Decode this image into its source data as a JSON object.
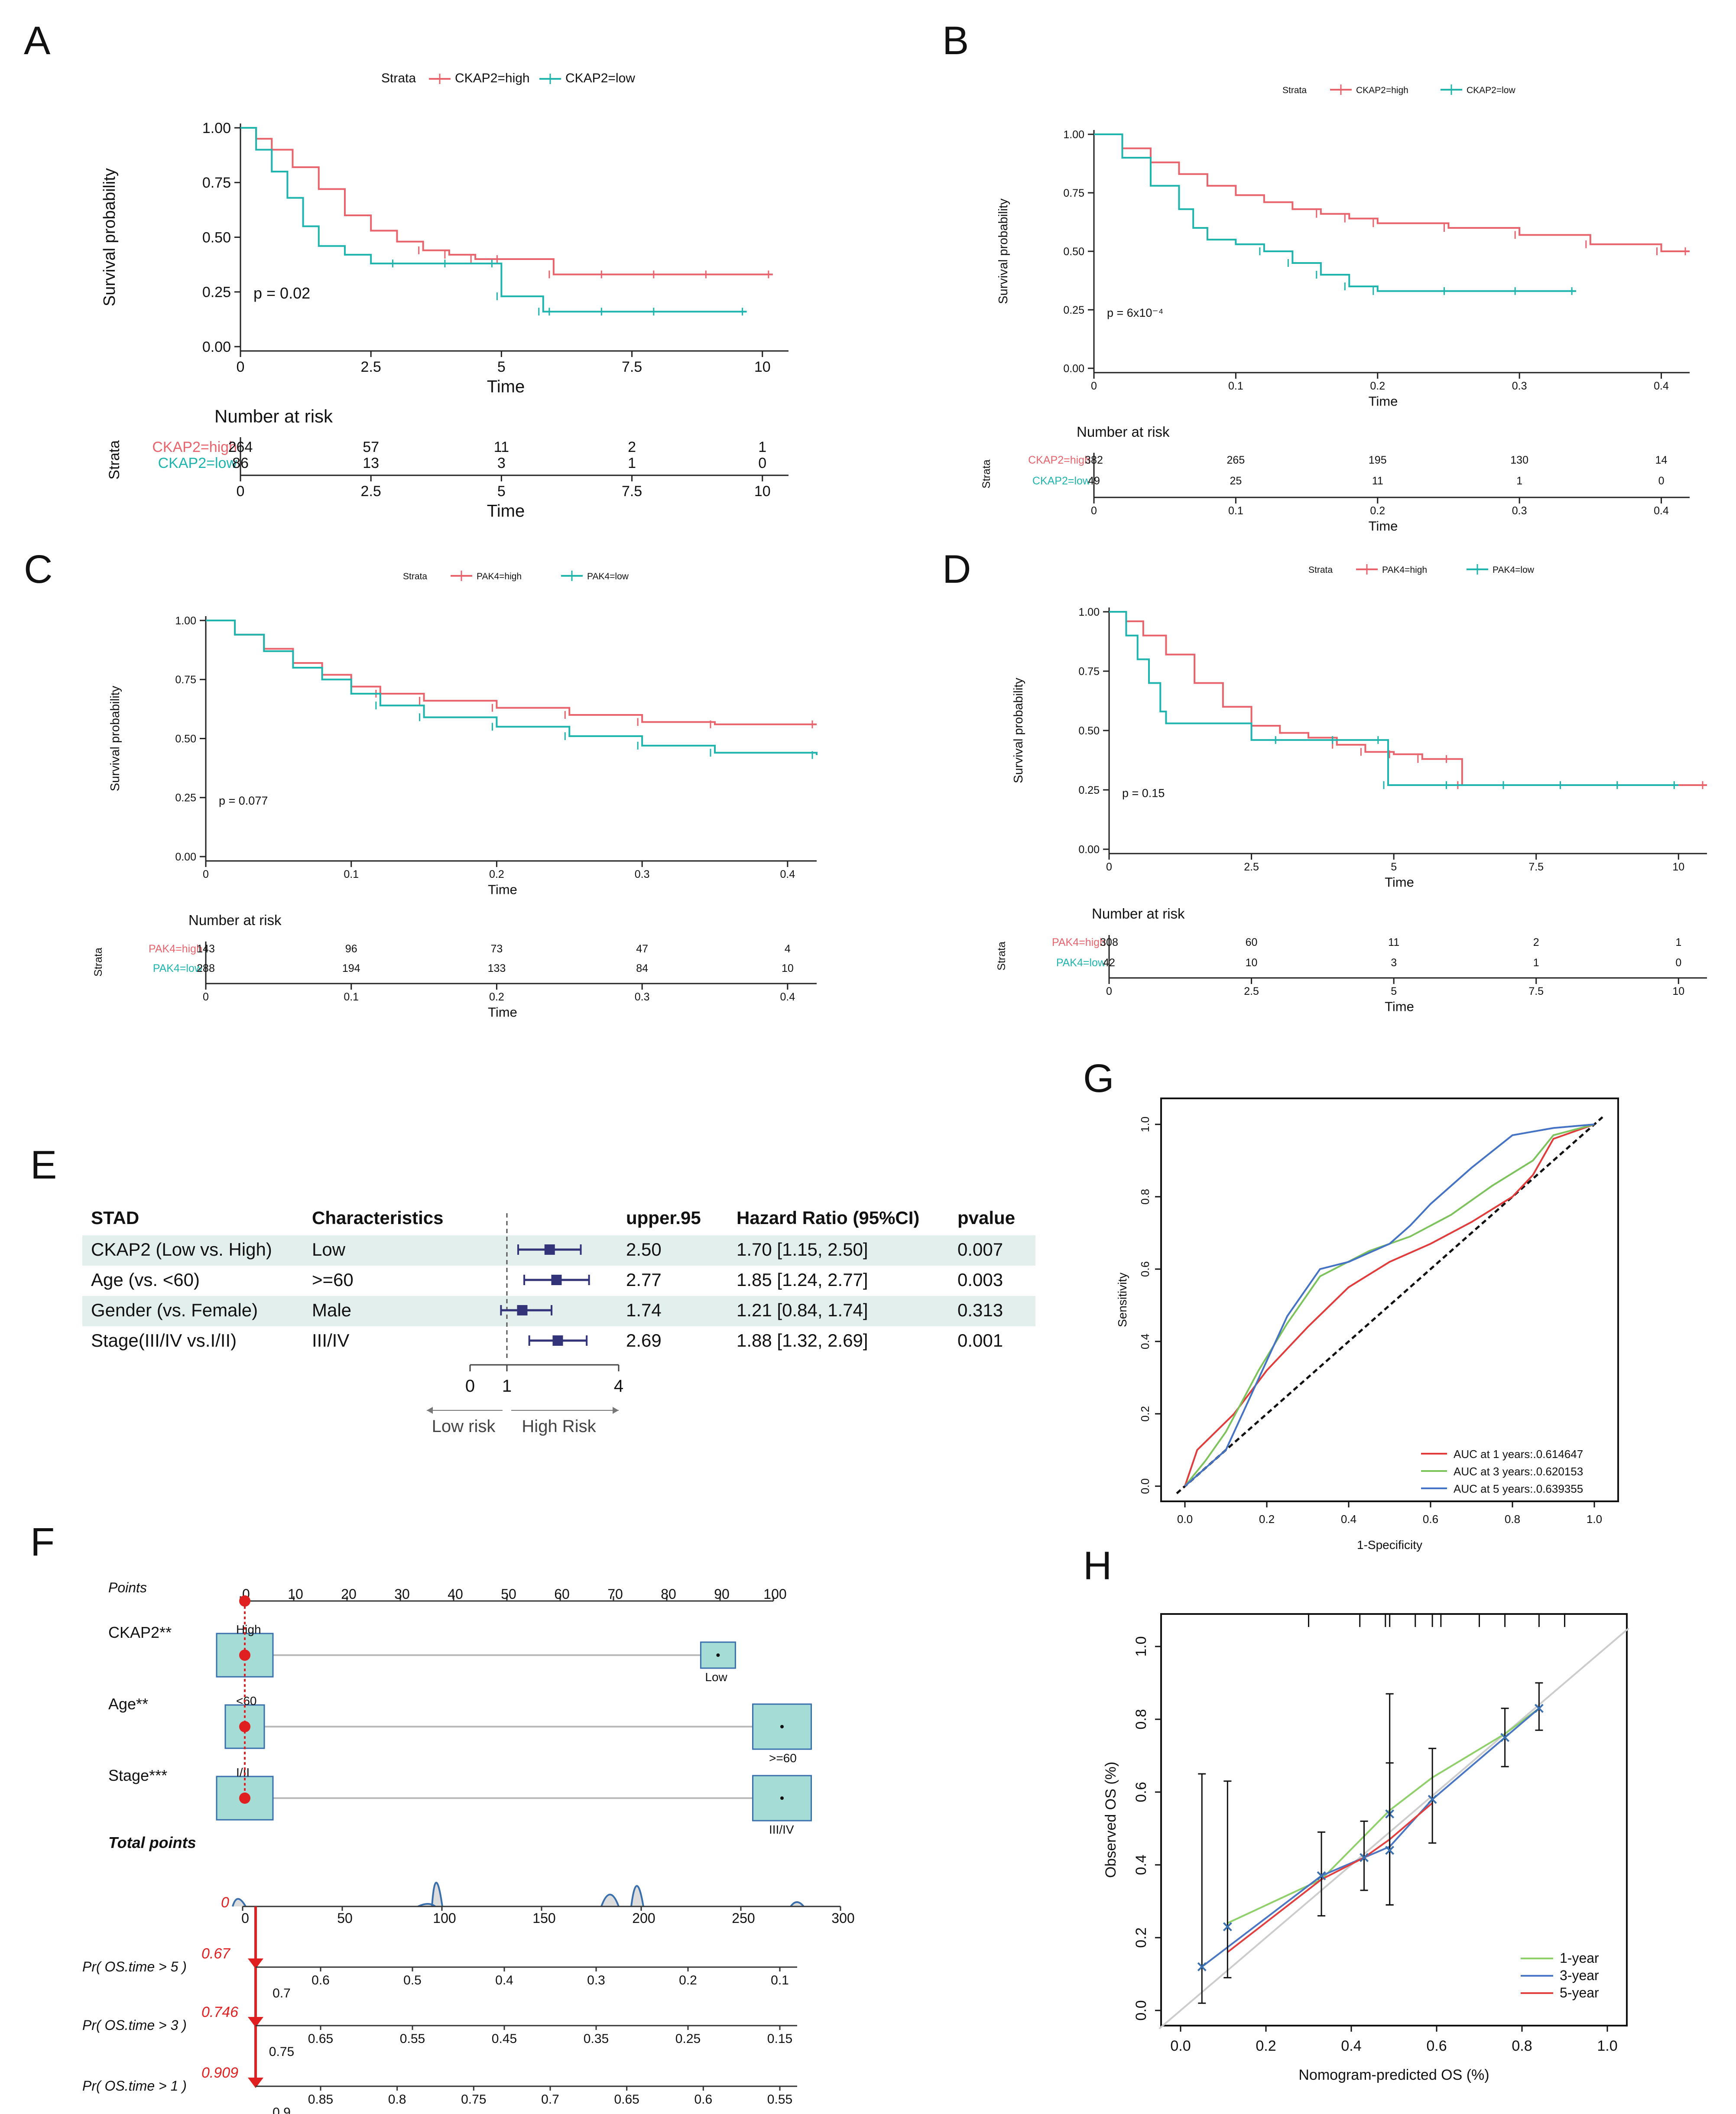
{
  "figure": {
    "panel_letters": [
      "A",
      "B",
      "C",
      "D",
      "E",
      "F",
      "G",
      "H"
    ]
  },
  "colors": {
    "high": "#e8636c",
    "low": "#1fb4ae",
    "axis": "#222222",
    "forest_band": "#e3efec",
    "forest_box": "#33337a",
    "nomo_box": "#a5dcd6",
    "nomo_point": "#e02020",
    "roc1": "#e23b3b",
    "roc3": "#7cc35c",
    "roc5": "#4472c4",
    "cal1": "#8fd06a",
    "cal3": "#4a76c4",
    "cal5": "#e24040"
  },
  "chart_data": [
    {
      "id": "A",
      "type": "km",
      "legend": {
        "title": "Strata",
        "items": [
          "CKAP2=high",
          "CKAP2=low"
        ]
      },
      "ylabel": "Survival probability",
      "xlabel": "Time",
      "yticks": [
        "0.00",
        "0.25",
        "0.50",
        "0.75",
        "1.00"
      ],
      "xticks": [
        "0",
        "2.5",
        "5",
        "7.5",
        "10"
      ],
      "xlim": [
        0,
        10.5
      ],
      "ylim": [
        0,
        1
      ],
      "pvalue": "p = 0.02",
      "series": [
        {
          "name": "CKAP2=high",
          "t": [
            0,
            0.3,
            0.6,
            1,
            1.5,
            2,
            2.5,
            3,
            3.5,
            4,
            4.5,
            5,
            6,
            7,
            8,
            9,
            10.2
          ],
          "s": [
            1,
            0.95,
            0.9,
            0.82,
            0.72,
            0.6,
            0.53,
            0.48,
            0.44,
            0.42,
            0.4,
            0.4,
            0.33,
            0.33,
            0.33,
            0.33,
            0.33
          ]
        },
        {
          "name": "CKAP2=low",
          "t": [
            0,
            0.3,
            0.6,
            0.9,
            1.2,
            1.5,
            2,
            2.5,
            3,
            4,
            4.9,
            5,
            5.8,
            6,
            7,
            8,
            9.7
          ],
          "s": [
            1,
            0.9,
            0.8,
            0.68,
            0.55,
            0.46,
            0.42,
            0.38,
            0.38,
            0.38,
            0.38,
            0.23,
            0.16,
            0.16,
            0.16,
            0.16,
            0.16
          ]
        }
      ],
      "risk": {
        "title": "Number at risk",
        "ylabel": "Strata",
        "xlabel": "Time",
        "rows": [
          {
            "label": "CKAP2=high",
            "values": [
              "264",
              "57",
              "11",
              "2",
              "1"
            ]
          },
          {
            "label": "CKAP2=low",
            "values": [
              "86",
              "13",
              "3",
              "1",
              "0"
            ]
          }
        ]
      }
    },
    {
      "id": "B",
      "type": "km",
      "legend": {
        "title": "Strata",
        "items": [
          "CKAP2=high",
          "CKAP2=low"
        ]
      },
      "ylabel": "Survival probability",
      "xlabel": "Time",
      "yticks": [
        "0.00",
        "0.25",
        "0.50",
        "0.75",
        "1.00"
      ],
      "xticks": [
        "0",
        "0.1",
        "0.2",
        "0.3",
        "0.4"
      ],
      "xlim": [
        0,
        0.42
      ],
      "ylim": [
        0,
        1
      ],
      "pvalue": "p = 6x10⁻⁴",
      "series": [
        {
          "name": "CKAP2=high",
          "t": [
            0,
            0.02,
            0.04,
            0.06,
            0.08,
            0.1,
            0.12,
            0.14,
            0.16,
            0.18,
            0.2,
            0.25,
            0.3,
            0.35,
            0.4,
            0.42
          ],
          "s": [
            1,
            0.94,
            0.88,
            0.83,
            0.78,
            0.74,
            0.71,
            0.68,
            0.66,
            0.64,
            0.62,
            0.6,
            0.57,
            0.53,
            0.5,
            0.5
          ]
        },
        {
          "name": "CKAP2=low",
          "t": [
            0,
            0.02,
            0.04,
            0.06,
            0.07,
            0.08,
            0.1,
            0.12,
            0.14,
            0.16,
            0.18,
            0.2,
            0.25,
            0.3,
            0.34
          ],
          "s": [
            1,
            0.9,
            0.78,
            0.68,
            0.6,
            0.55,
            0.53,
            0.5,
            0.45,
            0.4,
            0.35,
            0.33,
            0.33,
            0.33,
            0.33
          ]
        }
      ],
      "risk": {
        "title": "Number at risk",
        "ylabel": "Strata",
        "xlabel": "Time",
        "rows": [
          {
            "label": "CKAP2=high",
            "values": [
              "382",
              "265",
              "195",
              "130",
              "14"
            ]
          },
          {
            "label": "CKAP2=low",
            "values": [
              "49",
              "25",
              "11",
              "1",
              "0"
            ]
          }
        ]
      }
    },
    {
      "id": "C",
      "type": "km",
      "legend": {
        "title": "Strata",
        "items": [
          "PAK4=high",
          "PAK4=low"
        ]
      },
      "ylabel": "Survival probability",
      "xlabel": "Time",
      "yticks": [
        "0.00",
        "0.25",
        "0.50",
        "0.75",
        "1.00"
      ],
      "xticks": [
        "0",
        "0.1",
        "0.2",
        "0.3",
        "0.4"
      ],
      "xlim": [
        0,
        0.42
      ],
      "ylim": [
        0,
        1
      ],
      "pvalue": "p = 0.077",
      "series": [
        {
          "name": "PAK4=high",
          "t": [
            0,
            0.02,
            0.04,
            0.06,
            0.08,
            0.1,
            0.12,
            0.15,
            0.2,
            0.25,
            0.3,
            0.35,
            0.42
          ],
          "s": [
            1,
            0.94,
            0.88,
            0.82,
            0.77,
            0.72,
            0.69,
            0.66,
            0.63,
            0.6,
            0.57,
            0.56,
            0.56
          ]
        },
        {
          "name": "PAK4=low",
          "t": [
            0,
            0.02,
            0.04,
            0.06,
            0.08,
            0.1,
            0.12,
            0.15,
            0.2,
            0.25,
            0.3,
            0.35,
            0.42
          ],
          "s": [
            1,
            0.94,
            0.87,
            0.8,
            0.75,
            0.69,
            0.64,
            0.59,
            0.55,
            0.51,
            0.47,
            0.44,
            0.43
          ]
        }
      ],
      "risk": {
        "title": "Number at risk",
        "ylabel": "Strata",
        "xlabel": "Time",
        "rows": [
          {
            "label": "PAK4=high",
            "values": [
              "143",
              "96",
              "73",
              "47",
              "4"
            ]
          },
          {
            "label": "PAK4=low",
            "values": [
              "288",
              "194",
              "133",
              "84",
              "10"
            ]
          }
        ]
      }
    },
    {
      "id": "D",
      "type": "km",
      "legend": {
        "title": "Strata",
        "items": [
          "PAK4=high",
          "PAK4=low"
        ]
      },
      "ylabel": "Survival probability",
      "xlabel": "Time",
      "yticks": [
        "0.00",
        "0.25",
        "0.50",
        "0.75",
        "1.00"
      ],
      "xticks": [
        "0",
        "2.5",
        "5",
        "7.5",
        "10"
      ],
      "xlim": [
        0,
        10.5
      ],
      "ylim": [
        0,
        1
      ],
      "pvalue": "p = 0.15",
      "series": [
        {
          "name": "PAK4=high",
          "t": [
            0,
            0.3,
            0.6,
            1,
            1.5,
            2,
            2.5,
            3,
            3.5,
            4,
            4.5,
            5,
            5.5,
            6,
            6.2,
            7,
            8,
            9,
            10.5
          ],
          "s": [
            1,
            0.96,
            0.9,
            0.82,
            0.7,
            0.6,
            0.52,
            0.49,
            0.47,
            0.44,
            0.41,
            0.4,
            0.38,
            0.38,
            0.27,
            0.27,
            0.27,
            0.27,
            0.27
          ]
        },
        {
          "name": "PAK4=low",
          "t": [
            0,
            0.3,
            0.5,
            0.7,
            0.9,
            1,
            2,
            2.5,
            3,
            4,
            4.8,
            4.9,
            6,
            7,
            8,
            9,
            10
          ],
          "s": [
            1,
            0.9,
            0.8,
            0.7,
            0.58,
            0.53,
            0.53,
            0.46,
            0.46,
            0.46,
            0.46,
            0.27,
            0.27,
            0.27,
            0.27,
            0.27,
            0.27
          ]
        }
      ],
      "risk": {
        "title": "Number at risk",
        "ylabel": "Strata",
        "xlabel": "Time",
        "rows": [
          {
            "label": "PAK4=high",
            "values": [
              "308",
              "60",
              "11",
              "2",
              "1"
            ]
          },
          {
            "label": "PAK4=low",
            "values": [
              "42",
              "10",
              "3",
              "1",
              "0"
            ]
          }
        ]
      }
    },
    {
      "id": "E",
      "type": "forest",
      "headers": [
        "STAD",
        "Characteristics",
        "upper.95",
        "Hazard Ratio (95%CI)",
        "pvalue"
      ],
      "rows": [
        {
          "var": "CKAP2 (Low vs. High)",
          "char": "Low",
          "upper": "2.50",
          "hr_text": "1.70 [1.15, 2.50]",
          "p": "0.007",
          "hr": 1.7,
          "lo": 1.15,
          "hi": 2.5
        },
        {
          "var": "Age (vs. <60)",
          "char": ">=60",
          "upper": "2.77",
          "hr_text": "1.85 [1.24, 2.77]",
          "p": "0.003",
          "hr": 1.85,
          "lo": 1.24,
          "hi": 2.77
        },
        {
          "var": "Gender (vs. Female)",
          "char": "Male",
          "upper": "1.74",
          "hr_text": "1.21 [0.84, 1.74]",
          "p": "0.313",
          "hr": 1.21,
          "lo": 0.84,
          "hi": 1.74
        },
        {
          "var": "Stage(III/IV vs.I/II)",
          "char": "III/IV",
          "upper": "2.69",
          "hr_text": "1.88 [1.32, 2.69]",
          "p": "0.001",
          "hr": 1.88,
          "lo": 1.32,
          "hi": 2.69
        }
      ],
      "axis_ticks": [
        0,
        1,
        4
      ],
      "axis_labels": [
        "0",
        "1",
        "4"
      ],
      "low_label": "Low risk",
      "high_label": "High Risk"
    },
    {
      "id": "F",
      "type": "nomogram",
      "points_label": "Points",
      "points_ticks": [
        "0",
        "10",
        "20",
        "30",
        "40",
        "50",
        "60",
        "70",
        "80",
        "90",
        "100"
      ],
      "variables": [
        {
          "name": "CKAP2**",
          "levels": [
            "High",
            "Low"
          ],
          "points": [
            0,
            88
          ]
        },
        {
          "name": "Age**",
          "levels": [
            "<60",
            ">=60"
          ],
          "points": [
            0,
            100
          ]
        },
        {
          "name": "Stage***",
          "levels": [
            "I/II",
            "III/IV"
          ],
          "points": [
            0,
            100
          ]
        }
      ],
      "total_label": "Total points",
      "total_ticks": [
        "0",
        "50",
        "100",
        "150",
        "200",
        "250",
        "300"
      ],
      "total_value": "0",
      "prob_rows": [
        {
          "label": "Pr( OS.time > 5 )",
          "value": "0.67",
          "ticks_top": [
            "0.6",
            "0.5",
            "0.4",
            "0.3",
            "0.2",
            "0.1"
          ],
          "ticks_bottom": [
            "0.7"
          ]
        },
        {
          "label": "Pr( OS.time > 3 )",
          "value": "0.746",
          "ticks_top": [
            "0.65",
            "0.55",
            "0.45",
            "0.35",
            "0.25",
            "0.15"
          ],
          "ticks_bottom": [
            "0.75"
          ]
        },
        {
          "label": "Pr( OS.time > 1 )",
          "value": "0.909",
          "ticks_top": [
            "0.85",
            "0.8",
            "0.75",
            "0.7",
            "0.65",
            "0.6",
            "0.55"
          ],
          "ticks_bottom": [
            "0.9"
          ]
        }
      ]
    },
    {
      "id": "G",
      "type": "roc",
      "xlabel": "1-Specificity",
      "ylabel": "Sensitivity",
      "ticks": [
        "0.0",
        "0.2",
        "0.4",
        "0.6",
        "0.8",
        "1.0"
      ],
      "series": [
        {
          "name": "AUC at 1 years:.0.614647",
          "x": [
            0,
            0.03,
            0.12,
            0.2,
            0.3,
            0.4,
            0.5,
            0.6,
            0.7,
            0.8,
            0.85,
            0.9,
            1
          ],
          "y": [
            0,
            0.1,
            0.2,
            0.32,
            0.44,
            0.55,
            0.62,
            0.67,
            0.73,
            0.8,
            0.86,
            0.96,
            1
          ]
        },
        {
          "name": "AUC at 3 years:.0.620153",
          "x": [
            0,
            0.05,
            0.1,
            0.18,
            0.25,
            0.33,
            0.45,
            0.55,
            0.65,
            0.75,
            0.85,
            0.9,
            1
          ],
          "y": [
            0,
            0.07,
            0.15,
            0.32,
            0.45,
            0.58,
            0.65,
            0.69,
            0.75,
            0.83,
            0.9,
            0.97,
            1
          ]
        },
        {
          "name": "AUC at 5 years:.0.639355",
          "x": [
            0,
            0.1,
            0.25,
            0.33,
            0.4,
            0.5,
            0.55,
            0.6,
            0.7,
            0.8,
            0.9,
            1
          ],
          "y": [
            0,
            0.1,
            0.47,
            0.6,
            0.62,
            0.67,
            0.72,
            0.78,
            0.88,
            0.97,
            0.99,
            1
          ]
        }
      ]
    },
    {
      "id": "H",
      "type": "calibration",
      "xlabel": "Nomogram-predicted OS (%)",
      "ylabel": "Observed OS (%)",
      "ticks": [
        "0.0",
        "0.2",
        "0.4",
        "0.6",
        "0.8",
        "1.0"
      ],
      "series": [
        {
          "name": "1-year",
          "x": [
            0.11,
            0.33,
            0.49,
            0.59,
            0.76,
            0.84
          ],
          "y": [
            0.24,
            0.36,
            0.55,
            0.64,
            0.76,
            0.83
          ]
        },
        {
          "name": "3-year",
          "x": [
            0.05,
            0.33,
            0.49,
            0.59,
            0.76,
            0.84
          ],
          "y": [
            0.12,
            0.37,
            0.45,
            0.58,
            0.75,
            0.83
          ]
        },
        {
          "name": "5-year",
          "x": [
            0.11,
            0.33,
            0.43,
            0.49,
            0.59
          ],
          "y": [
            0.16,
            0.36,
            0.42,
            0.47,
            0.57
          ]
        }
      ],
      "errorbars": [
        {
          "x": 0.05,
          "y": 0.12,
          "lo": 0.02,
          "hi": 0.65
        },
        {
          "x": 0.11,
          "y": 0.23,
          "lo": 0.09,
          "hi": 0.63
        },
        {
          "x": 0.33,
          "y": 0.37,
          "lo": 0.26,
          "hi": 0.49
        },
        {
          "x": 0.43,
          "y": 0.42,
          "lo": 0.33,
          "hi": 0.52
        },
        {
          "x": 0.49,
          "y": 0.54,
          "lo": 0.29,
          "hi": 0.87
        },
        {
          "x": 0.49,
          "y": 0.44,
          "lo": 0.29,
          "hi": 0.68
        },
        {
          "x": 0.59,
          "y": 0.58,
          "lo": 0.46,
          "hi": 0.72
        },
        {
          "x": 0.76,
          "y": 0.75,
          "lo": 0.67,
          "hi": 0.83
        },
        {
          "x": 0.84,
          "y": 0.83,
          "lo": 0.77,
          "hi": 0.9
        }
      ]
    }
  ]
}
